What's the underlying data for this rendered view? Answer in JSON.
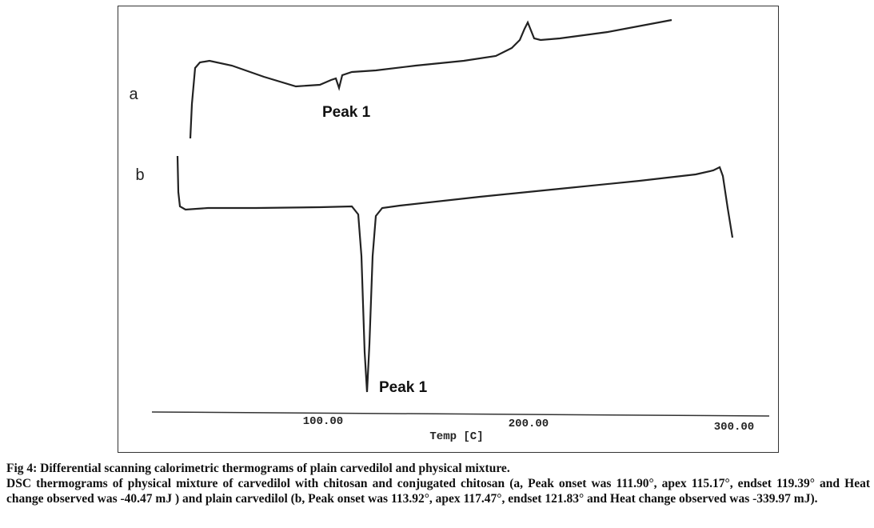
{
  "figure": {
    "panel_labels": [
      "a",
      "b"
    ],
    "peak_labels": [
      "Peak 1",
      "Peak 1"
    ],
    "x_tick_labels": [
      "100.00",
      "200.00",
      "300.00"
    ],
    "x_axis_label": "Temp [C]"
  },
  "caption": {
    "title": "Fig 4: Differential scanning calorimetric thermograms of plain carvedilol and physical mixture.",
    "body": "DSC thermograms of physical mixture of carvedilol with chitosan and conjugated chitosan (a, Peak onset was 111.90°, apex 115.17°, endset 119.39° and Heat change observed was -40.47 mJ ) and plain carvedilol (b, Peak onset was 113.92°, apex 117.47°, endset 121.83° and Heat change observed was -339.97 mJ)."
  }
}
